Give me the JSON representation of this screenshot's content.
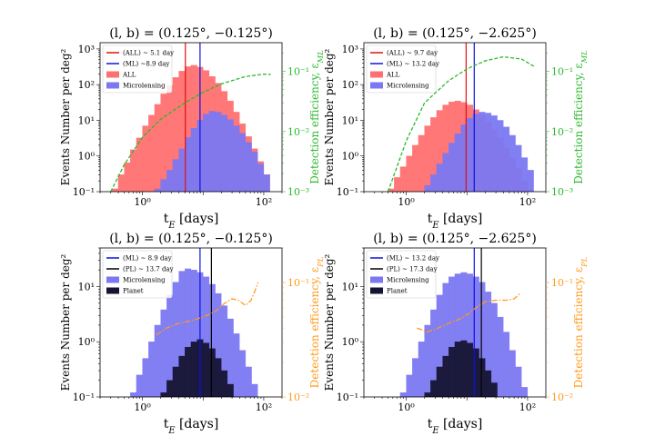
{
  "chart_data": [
    {
      "type": "bar",
      "panel": "top-left",
      "title": "(l, b) = (0.125°, −0.125°)",
      "xlabel": "t_E [days]",
      "ylabel": "Events Number per deg²",
      "y2label": "Detection efficiency, ε_ML",
      "y2color": "#2db92d",
      "x_scale": "log",
      "y_scale": "log",
      "y2_scale": "log",
      "xlim": [
        0.2,
        200
      ],
      "ylim": [
        0.1,
        1500
      ],
      "y2lim": [
        0.001,
        0.3
      ],
      "xticks": [
        "10^0",
        "10^2"
      ],
      "yticks": [
        "10^-1",
        "10^0",
        "10^1",
        "10^2",
        "10^3"
      ],
      "y2ticks": [
        "10^-3",
        "10^-2",
        "10^-1"
      ],
      "bin_edges_log10": [
        -0.5,
        -0.4,
        -0.3,
        -0.2,
        -0.1,
        0.0,
        0.1,
        0.2,
        0.3,
        0.4,
        0.5,
        0.6,
        0.7,
        0.8,
        0.9,
        1.0,
        1.1,
        1.2,
        1.3,
        1.4,
        1.5,
        1.6,
        1.7,
        1.8,
        1.9,
        2.0,
        2.1
      ],
      "series": [
        {
          "name": "ALL",
          "color": "#ff7070",
          "values": [
            0.12,
            0.3,
            0.65,
            1.5,
            3.2,
            7,
            14,
            28,
            55,
            95,
            160,
            240,
            320,
            350,
            310,
            250,
            170,
            110,
            65,
            35,
            17,
            8,
            3.5,
            1.6,
            0.7,
            0.3
          ]
        },
        {
          "name": "Microlensing",
          "color": "#7b78f2",
          "values": [
            null,
            null,
            null,
            null,
            null,
            null,
            null,
            0.12,
            0.22,
            0.4,
            0.8,
            1.6,
            3.3,
            6,
            10,
            15,
            18,
            17,
            14,
            10.5,
            7,
            4.3,
            2.4,
            1.3,
            0.6,
            0.3
          ]
        }
      ],
      "efficiency": {
        "style": "dashed",
        "x": [
          0.3,
          0.5,
          1,
          2,
          5,
          10,
          20,
          50,
          100,
          130
        ],
        "y": [
          0.001,
          0.0028,
          0.008,
          0.016,
          0.03,
          0.045,
          0.062,
          0.082,
          0.09,
          0.089
        ]
      },
      "vlines": [
        {
          "name": "(ALL) ~ 5.1 day",
          "x": 5.1,
          "color": "#e01010"
        },
        {
          "name": "(ML) ~8.9 day",
          "x": 8.9,
          "color": "#1010e0"
        }
      ],
      "legend": [
        {
          "label": "(ALL) ~ 5.1 day",
          "kind": "line",
          "color": "#e01010"
        },
        {
          "label": "(ML) ~8.9 day",
          "kind": "line",
          "color": "#1010e0"
        },
        {
          "label": "ALL",
          "kind": "patch",
          "color": "#ff7070"
        },
        {
          "label": "Microlensing",
          "kind": "patch",
          "color": "#7b78f2"
        }
      ],
      "legend_position": "top-left"
    },
    {
      "type": "bar",
      "panel": "top-right",
      "title": "(l, b) = (0.125°, −2.625°)",
      "xlabel": "t_E [days]",
      "ylabel": "Events Number per deg²",
      "y2label": "Detection efficiency, ε_ML",
      "y2color": "#2db92d",
      "x_scale": "log",
      "y_scale": "log",
      "y2_scale": "log",
      "xlim": [
        0.2,
        200
      ],
      "ylim": [
        0.1,
        1500
      ],
      "y2lim": [
        0.001,
        0.3
      ],
      "xticks": [
        "10^0",
        "10^2"
      ],
      "yticks": [
        "10^-1",
        "10^0",
        "10^1",
        "10^2",
        "10^3"
      ],
      "y2ticks": [
        "10^-3",
        "10^-2",
        "10^-1"
      ],
      "bin_edges_log10": [
        -0.3,
        -0.2,
        -0.1,
        0.0,
        0.1,
        0.2,
        0.3,
        0.4,
        0.5,
        0.6,
        0.7,
        0.8,
        0.9,
        1.0,
        1.1,
        1.2,
        1.3,
        1.4,
        1.5,
        1.6,
        1.7,
        1.8,
        1.9,
        2.0,
        2.1
      ],
      "series": [
        {
          "name": "ALL",
          "color": "#ff7070",
          "values": [
            0.12,
            0.25,
            0.5,
            1,
            2,
            3.8,
            7,
            12,
            19,
            27,
            33,
            35,
            32,
            27,
            20,
            14,
            9,
            5.5,
            3.2,
            1.7,
            0.9,
            0.45,
            0.2,
            0.11
          ]
        },
        {
          "name": "Microlensing",
          "color": "#7b78f2",
          "values": [
            null,
            null,
            null,
            null,
            null,
            null,
            0.15,
            0.3,
            0.6,
            1.2,
            2.3,
            4.2,
            7.5,
            11.5,
            15,
            17,
            16,
            13.5,
            10,
            6.5,
            3.8,
            2,
            0.9,
            0.4
          ]
        }
      ],
      "efficiency": {
        "style": "dashed",
        "x": [
          0.5,
          1,
          2,
          5,
          10,
          20,
          40,
          80,
          130
        ],
        "y": [
          0.001,
          0.007,
          0.03,
          0.07,
          0.11,
          0.15,
          0.175,
          0.16,
          0.12
        ]
      },
      "vlines": [
        {
          "name": "(ALL) ~ 9.7 day",
          "x": 9.7,
          "color": "#e01010"
        },
        {
          "name": "(ML) ~ 13.2 day",
          "x": 13.2,
          "color": "#1010e0"
        }
      ],
      "legend": [
        {
          "label": "(ALL) ~ 9.7 day",
          "kind": "line",
          "color": "#e01010"
        },
        {
          "label": "(ML) ~ 13.2 day",
          "kind": "line",
          "color": "#1010e0"
        },
        {
          "label": "ALL",
          "kind": "patch",
          "color": "#ff7070"
        },
        {
          "label": "Microlensing",
          "kind": "patch",
          "color": "#7b78f2"
        }
      ],
      "legend_position": "top-left"
    },
    {
      "type": "bar",
      "panel": "bottom-left",
      "title": "(l, b) = (0.125°, −0.125°)",
      "xlabel": "t_E [days]",
      "ylabel": "Events Number per deg²",
      "y2label": "Detection efficiency, ε_PL",
      "y2color": "#ff9a1a",
      "x_scale": "log",
      "y_scale": "log",
      "y2_scale": "log",
      "xlim": [
        0.2,
        200
      ],
      "ylim": [
        0.1,
        50
      ],
      "y2lim": [
        0.01,
        0.2
      ],
      "xticks": [
        "10^0",
        "10^2"
      ],
      "yticks": [
        "10^-1",
        "10^0",
        "10^1"
      ],
      "y2ticks": [
        "10^-2",
        "10^-1"
      ],
      "bin_edges_log10": [
        -0.2,
        -0.1,
        0.0,
        0.1,
        0.2,
        0.3,
        0.4,
        0.5,
        0.6,
        0.7,
        0.8,
        0.9,
        1.0,
        1.1,
        1.2,
        1.3,
        1.4,
        1.5,
        1.6,
        1.7,
        1.8,
        1.9,
        2.0,
        2.1
      ],
      "series": [
        {
          "name": "Microlensing",
          "color": "#7b78f2",
          "values": [
            0.12,
            0.25,
            0.5,
            1,
            2,
            3.8,
            7,
            12,
            19,
            21,
            20,
            18,
            15,
            11,
            7.5,
            4.5,
            2.6,
            1.4,
            0.7,
            0.35,
            0.17,
            null,
            null
          ]
        },
        {
          "name": "Planet",
          "color": "#151533",
          "values": [
            null,
            null,
            null,
            null,
            null,
            0.12,
            0.2,
            0.35,
            0.55,
            0.8,
            1,
            1.1,
            0.95,
            0.75,
            0.5,
            0.3,
            0.17,
            0.1,
            null,
            null,
            null,
            null,
            null
          ]
        }
      ],
      "efficiency": {
        "style": "dashdot",
        "x": [
          1.7,
          2.5,
          4,
          6,
          9,
          12,
          16,
          22,
          30,
          38,
          50,
          62,
          72,
          80
        ],
        "y": [
          0.035,
          0.04,
          0.044,
          0.046,
          0.049,
          0.052,
          0.056,
          0.065,
          0.072,
          0.07,
          0.063,
          0.07,
          0.085,
          0.1
        ]
      },
      "vlines": [
        {
          "name": "(ML) ~ 8.9 day",
          "x": 8.9,
          "color": "#1010e0"
        },
        {
          "name": "(PL) ~ 13.7 day",
          "x": 13.7,
          "color": "#000000"
        }
      ],
      "legend": [
        {
          "label": "(ML) ~ 8.9 day",
          "kind": "line",
          "color": "#1010e0"
        },
        {
          "label": "(PL) ~ 13.7 day",
          "kind": "line",
          "color": "#000000"
        },
        {
          "label": "Microlensing",
          "kind": "patch",
          "color": "#7b78f2"
        },
        {
          "label": "Planet",
          "kind": "patch",
          "color": "#151533"
        }
      ],
      "legend_position": "top-left"
    },
    {
      "type": "bar",
      "panel": "bottom-right",
      "title": "(l, b) = (0.125°, −2.625°)",
      "xlabel": "t_E [days]",
      "ylabel": "Events Number per deg²",
      "y2label": "Detection efficiency, ε_PL",
      "y2color": "#ff9a1a",
      "x_scale": "log",
      "y_scale": "log",
      "y2_scale": "log",
      "xlim": [
        0.2,
        200
      ],
      "ylim": [
        0.1,
        50
      ],
      "y2lim": [
        0.01,
        0.2
      ],
      "xticks": [
        "10^0",
        "10^2"
      ],
      "yticks": [
        "10^-1",
        "10^0",
        "10^1"
      ],
      "y2ticks": [
        "10^-2",
        "10^-1"
      ],
      "bin_edges_log10": [
        -0.1,
        0.0,
        0.1,
        0.2,
        0.3,
        0.4,
        0.5,
        0.6,
        0.7,
        0.8,
        0.9,
        1.0,
        1.1,
        1.2,
        1.3,
        1.4,
        1.5,
        1.6,
        1.7,
        1.8,
        1.9,
        2.0,
        2.1
      ],
      "series": [
        {
          "name": "Microlensing",
          "color": "#7b78f2",
          "values": [
            0.12,
            0.25,
            0.5,
            1,
            2,
            3.8,
            7,
            11.5,
            15,
            17,
            18,
            17,
            15,
            12,
            8,
            5,
            2.8,
            1.5,
            0.7,
            0.35,
            0.15,
            null
          ]
        },
        {
          "name": "Planet",
          "color": "#151533",
          "values": [
            null,
            null,
            null,
            null,
            0.12,
            0.2,
            0.35,
            0.55,
            0.8,
            1,
            1.05,
            0.95,
            0.75,
            0.5,
            0.3,
            0.18,
            0.1,
            null,
            null,
            null,
            null,
            null
          ]
        }
      ],
      "efficiency": {
        "style": "dashdot",
        "x": [
          1.5,
          2.2,
          3,
          4.5,
          7,
          10,
          14,
          20,
          30,
          45,
          60,
          75
        ],
        "y": [
          0.04,
          0.037,
          0.039,
          0.043,
          0.047,
          0.052,
          0.06,
          0.068,
          0.07,
          0.07,
          0.072,
          0.08
        ]
      },
      "vlines": [
        {
          "name": "(ML) ~ 13.2 day",
          "x": 13.2,
          "color": "#1010e0"
        },
        {
          "name": "(PL) ~ 17.3 day",
          "x": 17.3,
          "color": "#000000"
        }
      ],
      "legend": [
        {
          "label": "(ML) ~ 13.2 day",
          "kind": "line",
          "color": "#1010e0"
        },
        {
          "label": "(PL) ~ 17.3 day",
          "kind": "line",
          "color": "#000000"
        },
        {
          "label": "Microlensing",
          "kind": "patch",
          "color": "#7b78f2"
        },
        {
          "label": "Planet",
          "kind": "patch",
          "color": "#151533"
        }
      ],
      "legend_position": "top-left"
    }
  ]
}
